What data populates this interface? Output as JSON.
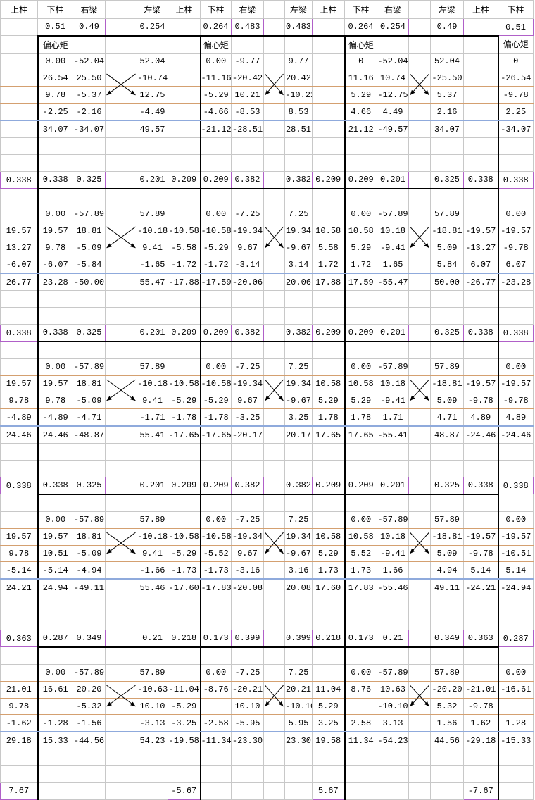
{
  "table": {
    "header": [
      "上柱",
      "下柱",
      "右梁",
      "左梁",
      "上柱",
      "下柱",
      "右梁",
      "左梁",
      "上柱",
      "下柱",
      "右梁",
      "左梁",
      "上柱",
      "下柱"
    ],
    "rows": [
      [
        null,
        "0.51",
        "0.49",
        null,
        "0.254",
        null,
        "0.264",
        "0.483",
        null,
        "0.483",
        null,
        "0.264",
        "0.254",
        null,
        "0.49",
        null,
        "0.51"
      ],
      [
        null,
        "偏心矩",
        null,
        null,
        null,
        null,
        "偏心矩",
        null,
        null,
        null,
        null,
        "偏心矩",
        null,
        null,
        null,
        null,
        "偏心矩"
      ],
      [
        null,
        "0.00",
        "-52.04",
        null,
        "52.04",
        null,
        "0.00",
        "-9.77",
        null,
        "9.77",
        null,
        "0",
        "-52.04",
        null,
        "52.04",
        null,
        "0"
      ],
      [
        null,
        "26.54",
        "25.50",
        null,
        "-10.74",
        null,
        "-11.16",
        "-20.42",
        null,
        "20.42",
        null,
        "11.16",
        "10.74",
        null,
        "-25.50",
        null,
        "-26.54"
      ],
      [
        null,
        "9.78",
        "-5.37",
        null,
        "12.75",
        null,
        "-5.29",
        "10.21",
        null,
        "-10.21",
        null,
        "5.29",
        "-12.75",
        null,
        "5.37",
        null,
        "-9.78"
      ],
      [
        null,
        "-2.25",
        "-2.16",
        null,
        "-4.49",
        null,
        "-4.66",
        "-8.53",
        null,
        "8.53",
        null,
        "4.66",
        "4.49",
        null,
        "2.16",
        null,
        "2.25"
      ],
      [
        null,
        "34.07",
        "-34.07",
        null,
        "49.57",
        null,
        "-21.12",
        "-28.51",
        null,
        "28.51",
        null,
        "21.12",
        "-49.57",
        null,
        "34.07",
        null,
        "-34.07"
      ],
      [
        null,
        null,
        null,
        null,
        null,
        null,
        null,
        null,
        null,
        null,
        null,
        null,
        null,
        null,
        null,
        null,
        null
      ],
      [
        null,
        null,
        null,
        null,
        null,
        null,
        null,
        null,
        null,
        null,
        null,
        null,
        null,
        null,
        null,
        null,
        null
      ],
      [
        "0.338",
        "0.338",
        "0.325",
        null,
        "0.201",
        "0.209",
        "0.209",
        "0.382",
        null,
        "0.382",
        "0.209",
        "0.209",
        "0.201",
        null,
        "0.325",
        "0.338",
        "0.338"
      ],
      [
        null,
        null,
        null,
        null,
        null,
        null,
        null,
        null,
        null,
        null,
        null,
        null,
        null,
        null,
        null,
        null,
        null
      ],
      [
        null,
        "0.00",
        "-57.89",
        null,
        "57.89",
        null,
        "0.00",
        "-7.25",
        null,
        "7.25",
        null,
        "0.00",
        "-57.89",
        null,
        "57.89",
        null,
        "0.00"
      ],
      [
        "19.57",
        "19.57",
        "18.81",
        null,
        "-10.18",
        "-10.58",
        "-10.58",
        "-19.34",
        null,
        "19.34",
        "10.58",
        "10.58",
        "10.18",
        null,
        "-18.81",
        "-19.57",
        "-19.57"
      ],
      [
        "13.27",
        "9.78",
        "-5.09",
        null,
        "9.41",
        "-5.58",
        "-5.29",
        "9.67",
        null,
        "-9.67",
        "5.58",
        "5.29",
        "-9.41",
        null,
        "5.09",
        "-13.27",
        "-9.78"
      ],
      [
        "-6.07",
        "-6.07",
        "-5.84",
        null,
        "-1.65",
        "-1.72",
        "-1.72",
        "-3.14",
        null,
        "3.14",
        "1.72",
        "1.72",
        "1.65",
        null,
        "5.84",
        "6.07",
        "6.07"
      ],
      [
        "26.77",
        "23.28",
        "-50.00",
        null,
        "55.47",
        "-17.88",
        "-17.59",
        "-20.06",
        null,
        "20.06",
        "17.88",
        "17.59",
        "-55.47",
        null,
        "50.00",
        "-26.77",
        "-23.28"
      ],
      [
        null,
        null,
        null,
        null,
        null,
        null,
        null,
        null,
        null,
        null,
        null,
        null,
        null,
        null,
        null,
        null,
        null
      ],
      [
        null,
        null,
        null,
        null,
        null,
        null,
        null,
        null,
        null,
        null,
        null,
        null,
        null,
        null,
        null,
        null,
        null
      ],
      [
        "0.338",
        "0.338",
        "0.325",
        null,
        "0.201",
        "0.209",
        "0.209",
        "0.382",
        null,
        "0.382",
        "0.209",
        "0.209",
        "0.201",
        null,
        "0.325",
        "0.338",
        "0.338"
      ],
      [
        null,
        null,
        null,
        null,
        null,
        null,
        null,
        null,
        null,
        null,
        null,
        null,
        null,
        null,
        null,
        null,
        null
      ],
      [
        null,
        "0.00",
        "-57.89",
        null,
        "57.89",
        null,
        "0.00",
        "-7.25",
        null,
        "7.25",
        null,
        "0.00",
        "-57.89",
        null,
        "57.89",
        null,
        "0.00"
      ],
      [
        "19.57",
        "19.57",
        "18.81",
        null,
        "-10.18",
        "-10.58",
        "-10.58",
        "-19.34",
        null,
        "19.34",
        "10.58",
        "10.58",
        "10.18",
        null,
        "-18.81",
        "-19.57",
        "-19.57"
      ],
      [
        "9.78",
        "9.78",
        "-5.09",
        null,
        "9.41",
        "-5.29",
        "-5.29",
        "9.67",
        null,
        "-9.67",
        "5.29",
        "5.29",
        "-9.41",
        null,
        "5.09",
        "-9.78",
        "-9.78"
      ],
      [
        "-4.89",
        "-4.89",
        "-4.71",
        null,
        "-1.71",
        "-1.78",
        "-1.78",
        "-3.25",
        null,
        "3.25",
        "1.78",
        "1.78",
        "1.71",
        null,
        "4.71",
        "4.89",
        "4.89"
      ],
      [
        "24.46",
        "24.46",
        "-48.87",
        null,
        "55.41",
        "-17.65",
        "-17.65",
        "-20.17",
        null,
        "20.17",
        "17.65",
        "17.65",
        "-55.41",
        null,
        "48.87",
        "-24.46",
        "-24.46"
      ],
      [
        null,
        null,
        null,
        null,
        null,
        null,
        null,
        null,
        null,
        null,
        null,
        null,
        null,
        null,
        null,
        null,
        null
      ],
      [
        null,
        null,
        null,
        null,
        null,
        null,
        null,
        null,
        null,
        null,
        null,
        null,
        null,
        null,
        null,
        null,
        null
      ],
      [
        "0.338",
        "0.338",
        "0.325",
        null,
        "0.201",
        "0.209",
        "0.209",
        "0.382",
        null,
        "0.382",
        "0.209",
        "0.209",
        "0.201",
        null,
        "0.325",
        "0.338",
        "0.338"
      ],
      [
        null,
        null,
        null,
        null,
        null,
        null,
        null,
        null,
        null,
        null,
        null,
        null,
        null,
        null,
        null,
        null,
        null
      ],
      [
        null,
        "0.00",
        "-57.89",
        null,
        "57.89",
        null,
        "0.00",
        "-7.25",
        null,
        "7.25",
        null,
        "0.00",
        "-57.89",
        null,
        "57.89",
        null,
        "0.00"
      ],
      [
        "19.57",
        "19.57",
        "18.81",
        null,
        "-10.18",
        "-10.58",
        "-10.58",
        "-19.34",
        null,
        "19.34",
        "10.58",
        "10.58",
        "10.18",
        null,
        "-18.81",
        "-19.57",
        "-19.57"
      ],
      [
        "9.78",
        "10.51",
        "-5.09",
        null,
        "9.41",
        "-5.29",
        "-5.52",
        "9.67",
        null,
        "-9.67",
        "5.29",
        "5.52",
        "-9.41",
        null,
        "5.09",
        "-9.78",
        "-10.51"
      ],
      [
        "-5.14",
        "-5.14",
        "-4.94",
        null,
        "-1.66",
        "-1.73",
        "-1.73",
        "-3.16",
        null,
        "3.16",
        "1.73",
        "1.73",
        "1.66",
        null,
        "4.94",
        "5.14",
        "5.14"
      ],
      [
        "24.21",
        "24.94",
        "-49.11",
        null,
        "55.46",
        "-17.60",
        "-17.83",
        "-20.08",
        null,
        "20.08",
        "17.60",
        "17.83",
        "-55.46",
        null,
        "49.11",
        "-24.21",
        "-24.94"
      ],
      [
        null,
        null,
        null,
        null,
        null,
        null,
        null,
        null,
        null,
        null,
        null,
        null,
        null,
        null,
        null,
        null,
        null
      ],
      [
        null,
        null,
        null,
        null,
        null,
        null,
        null,
        null,
        null,
        null,
        null,
        null,
        null,
        null,
        null,
        null,
        null
      ],
      [
        "0.363",
        "0.287",
        "0.349",
        null,
        "0.21",
        "0.218",
        "0.173",
        "0.399",
        null,
        "0.399",
        "0.218",
        "0.173",
        "0.21",
        null,
        "0.349",
        "0.363",
        "0.287"
      ],
      [
        null,
        null,
        null,
        null,
        null,
        null,
        null,
        null,
        null,
        null,
        null,
        null,
        null,
        null,
        null,
        null,
        null
      ],
      [
        null,
        "0.00",
        "-57.89",
        null,
        "57.89",
        null,
        "0.00",
        "-7.25",
        null,
        "7.25",
        null,
        "0.00",
        "-57.89",
        null,
        "57.89",
        null,
        "0.00"
      ],
      [
        "21.01",
        "16.61",
        "20.20",
        null,
        "-10.63",
        "-11.04",
        "-8.76",
        "-20.21",
        null,
        "20.21",
        "11.04",
        "8.76",
        "10.63",
        null,
        "-20.20",
        "-21.01",
        "-16.61"
      ],
      [
        "9.78",
        null,
        "-5.32",
        null,
        "10.10",
        "-5.29",
        null,
        "10.10",
        null,
        "-10.10",
        "5.29",
        null,
        "-10.10",
        null,
        "5.32",
        "-9.78",
        null
      ],
      [
        "-1.62",
        "-1.28",
        "-1.56",
        null,
        "-3.13",
        "-3.25",
        "-2.58",
        "-5.95",
        null,
        "5.95",
        "3.25",
        "2.58",
        "3.13",
        null,
        "1.56",
        "1.62",
        "1.28"
      ],
      [
        "29.18",
        "15.33",
        "-44.56",
        null,
        "54.23",
        "-19.58",
        "-11.34",
        "-23.30",
        null,
        "23.30",
        "19.58",
        "11.34",
        "-54.23",
        null,
        "44.56",
        "-29.18",
        "-15.33"
      ],
      [
        null,
        null,
        null,
        null,
        null,
        null,
        null,
        null,
        null,
        null,
        null,
        null,
        null,
        null,
        null,
        null,
        null
      ],
      [
        null,
        null,
        null,
        null,
        null,
        null,
        null,
        null,
        null,
        null,
        null,
        null,
        null,
        null,
        null,
        null,
        null
      ],
      [
        "7.67",
        null,
        null,
        null,
        null,
        "-5.67",
        null,
        null,
        null,
        null,
        "5.67",
        null,
        null,
        null,
        null,
        "-7.67",
        null
      ]
    ]
  }
}
